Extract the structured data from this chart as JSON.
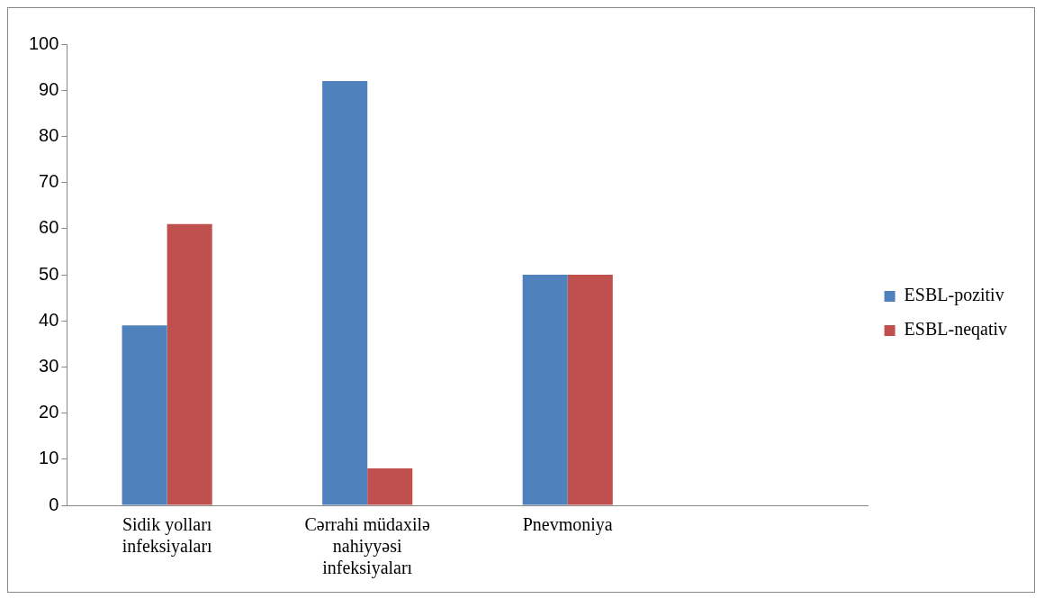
{
  "chart_data": {
    "type": "bar",
    "categories": [
      "Sidik yolları infeksiyaları",
      "Cərrahi müdaxilə nahiyyəsi infeksiyaları",
      "Pnevmoniya",
      null
    ],
    "series": [
      {
        "name": "ESBL-pozitiv",
        "color": "#4f81bd",
        "values": [
          39,
          92,
          50,
          null
        ]
      },
      {
        "name": "ESBL-neqativ",
        "color": "#c0504d",
        "values": [
          61,
          8,
          50,
          null
        ]
      }
    ],
    "ylim": [
      0,
      100
    ],
    "yticks": [
      0,
      10,
      20,
      30,
      40,
      50,
      60,
      70,
      80,
      90,
      100
    ],
    "grid": false,
    "legend": "right"
  }
}
